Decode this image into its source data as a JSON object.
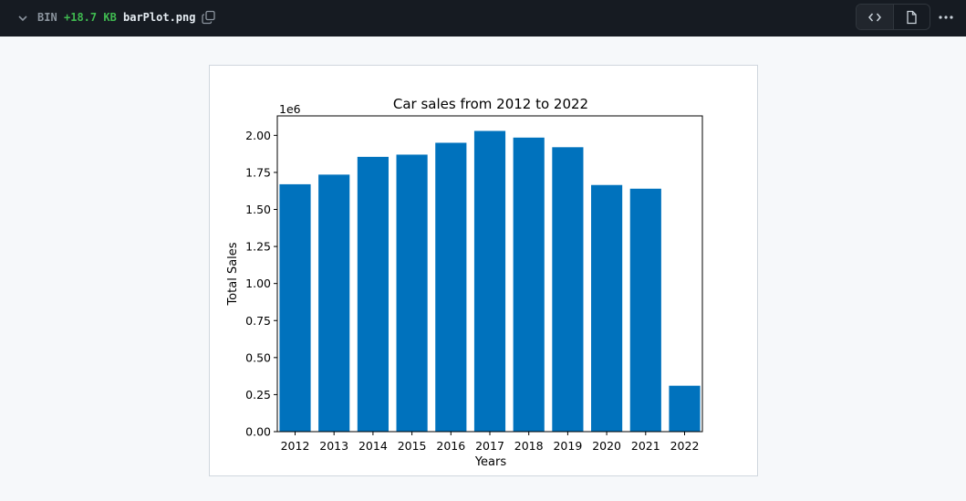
{
  "file_header": {
    "type_label": "BIN",
    "size_delta": "+18.7 KB",
    "file_name": "barPlot.png",
    "icons": {
      "collapse": "chevron-down-icon",
      "copy": "copy-icon",
      "code": "code-icon",
      "file": "file-icon",
      "more": "kebab-horizontal-icon"
    }
  },
  "colors": {
    "header_bg": "#161b22",
    "size_delta": "#3fb950",
    "bar": "#0072bd",
    "page_bg": "#f6f8fa"
  },
  "chart_data": {
    "type": "bar",
    "title": "Car sales from 2012 to 2022",
    "xlabel": "Years",
    "ylabel": "Total Sales",
    "y_offset_label": "1e6",
    "categories": [
      "2012",
      "2013",
      "2014",
      "2015",
      "2016",
      "2017",
      "2018",
      "2019",
      "2020",
      "2021",
      "2022"
    ],
    "values": [
      1670000,
      1735000,
      1855000,
      1870000,
      1950000,
      2030000,
      1985000,
      1920000,
      1665000,
      1640000,
      310000
    ],
    "y_ticks": [
      "0.00",
      "0.25",
      "0.50",
      "0.75",
      "1.00",
      "1.25",
      "1.50",
      "1.75",
      "2.00"
    ],
    "y_tick_values": [
      0,
      250000,
      500000,
      750000,
      1000000,
      1250000,
      1500000,
      1750000,
      2000000
    ],
    "ylim": [
      0,
      2131500
    ],
    "grid": false,
    "legend": "none"
  }
}
